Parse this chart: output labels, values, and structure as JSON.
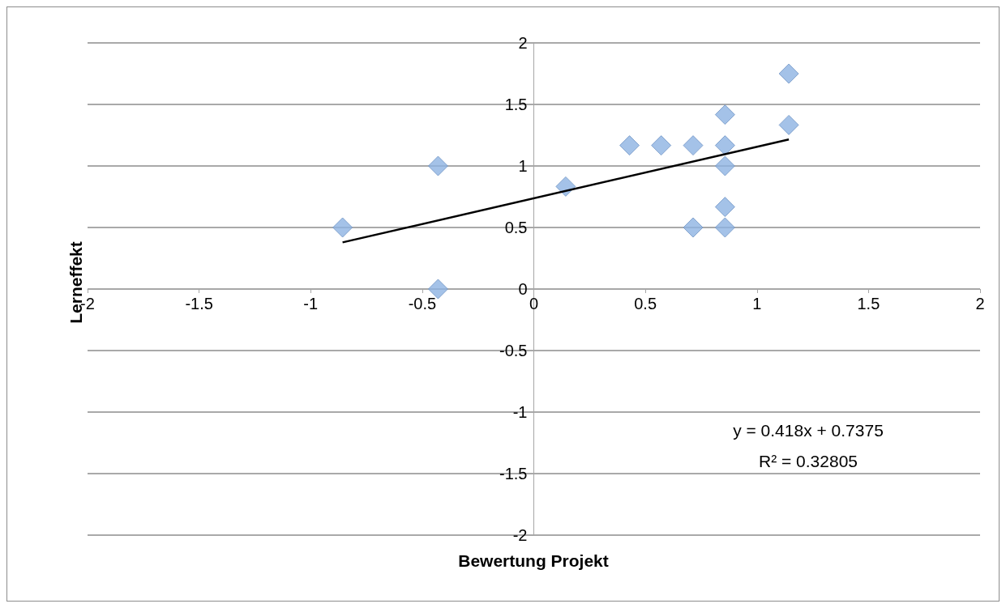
{
  "chart_data": {
    "type": "scatter",
    "xlabel": "Bewertung Projekt",
    "ylabel": "Lerneffekt",
    "xlim": [
      -2,
      2
    ],
    "ylim": [
      -2,
      2
    ],
    "xticks": [
      -2,
      -1.5,
      -1,
      -0.5,
      0,
      0.5,
      1,
      1.5,
      2
    ],
    "yticks": [
      -2,
      -1.5,
      -1,
      -0.5,
      0,
      0.5,
      1,
      1.5,
      2
    ],
    "grid": "y",
    "series": [
      {
        "marker": "diamond",
        "color": "#8db3e2",
        "x": [
          -0.857,
          -0.429,
          -0.429,
          0.143,
          0.429,
          0.571,
          0.714,
          0.857,
          0.857,
          0.857,
          0.857,
          0.857,
          0.714,
          1.143,
          1.143
        ],
        "values": [
          0.5,
          1,
          0,
          0.833,
          1.167,
          1.167,
          1.167,
          1.167,
          1.417,
          1,
          0.667,
          0.5,
          0.5,
          1.333,
          1.75
        ]
      },
      {
        "type": "line",
        "color": "#000000",
        "line_style": "solid",
        "x": [
          -0.857,
          1.143
        ],
        "values": [
          0.379,
          1.215
        ]
      }
    ],
    "annotations": [
      "y = 0.418x + 0.7375",
      "R² = 0.32805"
    ]
  }
}
